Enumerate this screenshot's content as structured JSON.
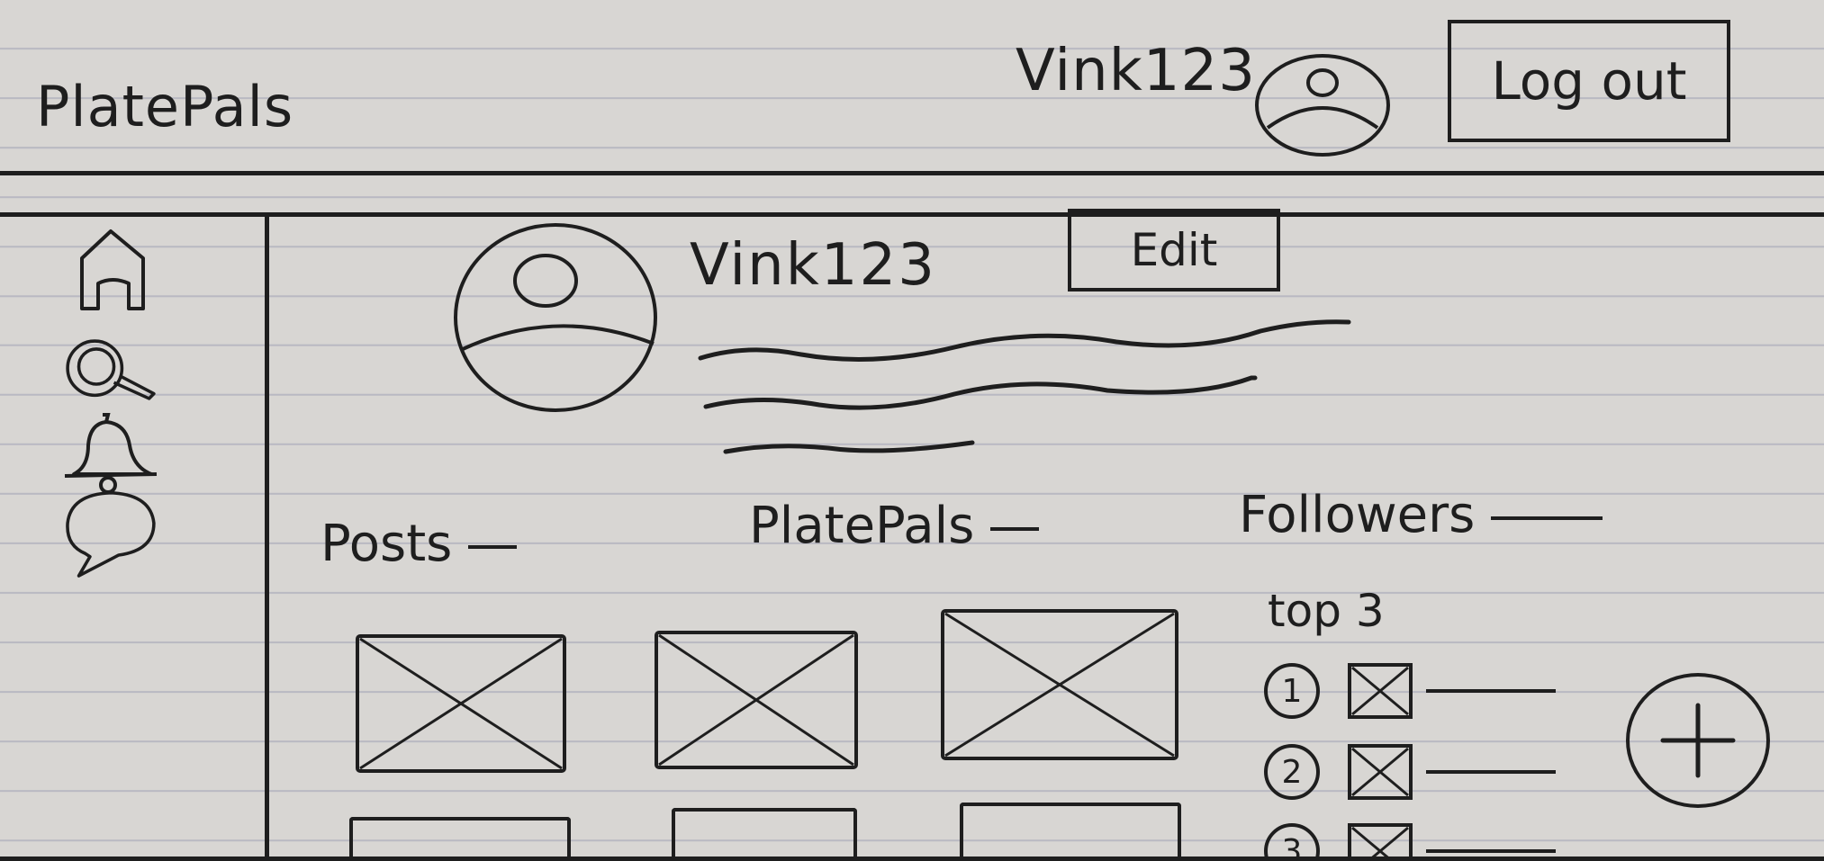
{
  "app": {
    "title": "PlatePals"
  },
  "header": {
    "username": "Vink123",
    "logout_label": "Log out",
    "avatar_icon": "user-avatar-icon"
  },
  "sidebar": {
    "items": [
      {
        "id": "home",
        "icon": "home-icon"
      },
      {
        "id": "search",
        "icon": "search-icon"
      },
      {
        "id": "notifications",
        "icon": "bell-icon"
      },
      {
        "id": "messages",
        "icon": "chat-bubble-icon"
      }
    ]
  },
  "profile": {
    "username": "Vink123",
    "edit_label": "Edit",
    "stats": [
      {
        "label": "Posts",
        "value": ""
      },
      {
        "label": "PlatePals",
        "value": ""
      },
      {
        "label": "Followers",
        "value": ""
      }
    ],
    "top_label": "top 3",
    "top_followers": [
      {
        "rank": "1",
        "name": ""
      },
      {
        "rank": "2",
        "name": ""
      },
      {
        "rank": "3",
        "name": ""
      }
    ]
  },
  "colors": {
    "ink": "#1e1e1e",
    "paper": "#d8d6d3",
    "rule": "#b9b9c2"
  }
}
